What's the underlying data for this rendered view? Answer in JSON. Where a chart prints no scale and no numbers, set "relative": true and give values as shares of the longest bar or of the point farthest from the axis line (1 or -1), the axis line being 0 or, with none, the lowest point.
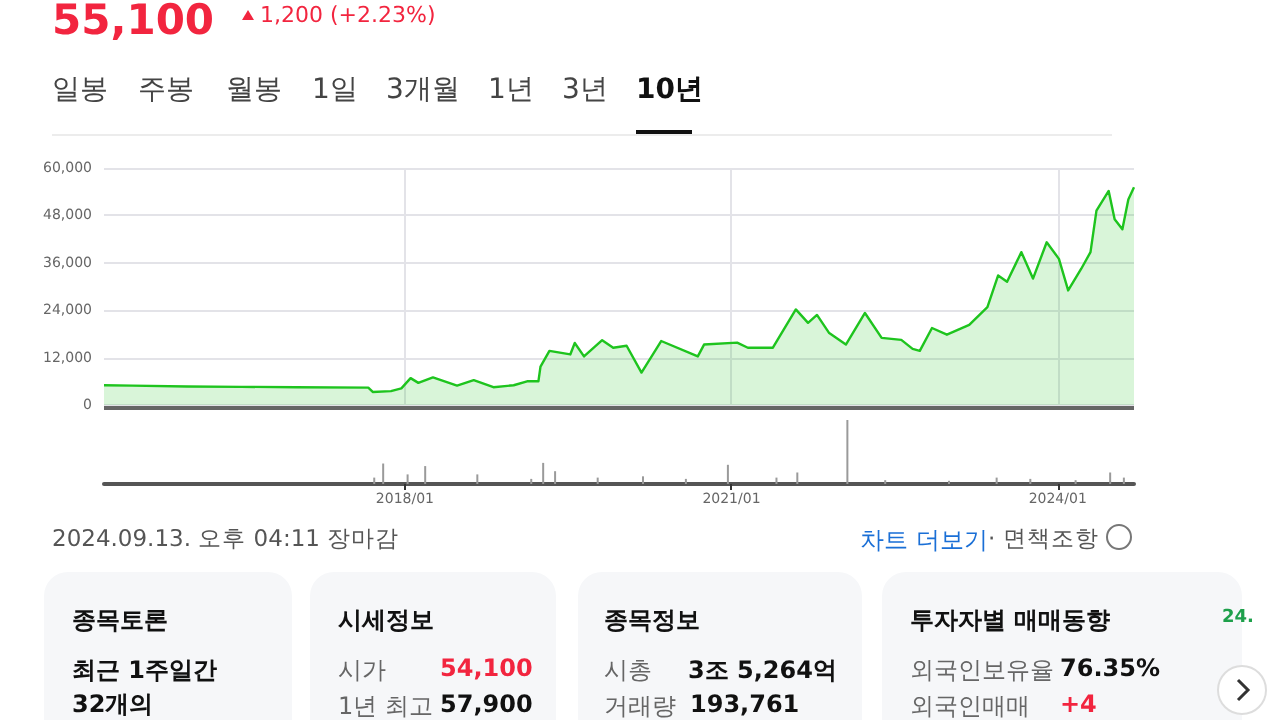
{
  "chart_data": [
    {
      "type": "area",
      "title": "55,100",
      "subtitle": "1,200 (+2.23%)",
      "annotations": [
        "일봉",
        "주봉",
        "월봉",
        "1일",
        "3개월",
        "1년",
        "3년",
        "10년"
      ],
      "x": [
        "2015-03-28",
        "2015-07-01",
        "2016-01-01",
        "2016-07-01",
        "2017-01-01",
        "2017-08-31",
        "2017-09-15",
        "2017-11-15",
        "2017-12-20",
        "2018-01-20",
        "2018-02-15",
        "2018-04-05",
        "2018-06-25",
        "2018-08-20",
        "2018-10-25",
        "2019-01-01",
        "2019-02-15",
        "2019-03-25",
        "2019-04-01",
        "2019-05-01",
        "2019-07-10",
        "2019-07-25",
        "2019-08-25",
        "2019-10-25",
        "2019-12-01",
        "2020-01-15",
        "2020-03-05",
        "2020-05-10",
        "2020-09-10",
        "2020-10-01",
        "2021-01-20",
        "2021-02-25",
        "2021-05-20",
        "2021-08-05",
        "2021-09-15",
        "2021-10-15",
        "2021-11-25",
        "2022-01-20",
        "2022-03-25",
        "2022-05-20",
        "2022-07-25",
        "2022-09-01",
        "2022-09-25",
        "2022-11-05",
        "2022-12-25",
        "2023-03-10",
        "2023-05-10",
        "2023-06-15",
        "2023-07-15",
        "2023-09-01",
        "2023-10-10",
        "2023-11-25",
        "2024-01-05",
        "2024-02-05",
        "2024-03-20",
        "2024-04-20",
        "2024-05-10",
        "2024-06-20",
        "2024-07-10",
        "2024-08-05",
        "2024-08-25",
        "2024-09-13"
      ],
      "series": [
        {
          "color": "#1ec41e",
          "values": [
            5000,
            4900,
            4700,
            4600,
            4500,
            4400,
            3300,
            3500,
            4200,
            6800,
            5600,
            7000,
            4900,
            6300,
            4500,
            5000,
            6000,
            6000,
            9700,
            13700,
            12800,
            15700,
            12300,
            16400,
            14500,
            15000,
            8200,
            16200,
            12300,
            15300,
            15800,
            14500,
            14500,
            24200,
            20800,
            22800,
            18200,
            15300,
            23300,
            17000,
            16500,
            14200,
            13700,
            19500,
            17800,
            20300,
            24800,
            32800,
            31200,
            38700,
            32000,
            41200,
            37000,
            29000,
            34500,
            38700,
            49200,
            54200,
            47000,
            44500,
            52000,
            55100
          ]
        }
      ],
      "xlim": [
        "2015-03-28",
        "2024-09-13"
      ],
      "xticks": [
        {
          "value": "2018-01-01",
          "label": null
        },
        {
          "value": "2021-01-01",
          "label": null
        },
        {
          "value": "2024-01-01",
          "label": null
        }
      ],
      "ylim": [
        0,
        60000
      ],
      "yticks": [
        {
          "value": 0,
          "label": "0"
        },
        {
          "value": 12000,
          "label": "12,000"
        },
        {
          "value": 24000,
          "label": "24,000"
        },
        {
          "value": 36000,
          "label": "36,000"
        },
        {
          "value": 48000,
          "label": "48,000"
        },
        {
          "value": 60000,
          "label": "60,000"
        }
      ],
      "grid": true,
      "tick_labels": "y"
    },
    {
      "type": "bar",
      "relative": true,
      "tick_labels": "x",
      "x": [
        "2017-09-20",
        "2017-10-20",
        "2018-01-10",
        "2018-03-10",
        "2018-09-01",
        "2019-03-01",
        "2019-04-10",
        "2019-05-20",
        "2019-10-10",
        "2020-03-10",
        "2020-08-01",
        "2020-12-20",
        "2021-06-01",
        "2021-08-10",
        "2022-01-25",
        "2022-06-01",
        "2023-01-01",
        "2023-06-10",
        "2023-10-01",
        "2024-03-01",
        "2024-06-25",
        "2024-08-10"
      ],
      "series": [
        {
          "color": "#9a9a9a",
          "values": [
            0.1,
            0.32,
            0.15,
            0.28,
            0.15,
            0.08,
            0.33,
            0.2,
            0.1,
            0.12,
            0.08,
            0.3,
            0.1,
            0.18,
            1,
            0.06,
            0.05,
            0.1,
            0.08,
            0.06,
            0.18,
            0.1
          ]
        }
      ],
      "xlim": [
        "2015-03-28",
        "2024-09-13"
      ],
      "xticks": [
        {
          "value": "2018-01-01",
          "label": "2018/01"
        },
        {
          "value": "2021-01-01",
          "label": "2021/01"
        },
        {
          "value": "2024-01-01",
          "label": "2024/01"
        }
      ]
    },
    {
      "type": "other",
      "annotations": [
        "2024.09.13. 오후 04:11 장마감",
        "차트 더보기",
        "· 면책조항",
        "종목토론",
        "최근 1주일간",
        "32개의",
        "시세정보",
        "시가",
        "54,100",
        "1년 최고",
        "57,900",
        "종목정보",
        "시총",
        "3조 5,264억",
        "거래량",
        "193,761",
        "투자자별 매매동향",
        "24.",
        "외국인보유율",
        "76.35%",
        "외국인매매",
        "+4"
      ]
    }
  ]
}
